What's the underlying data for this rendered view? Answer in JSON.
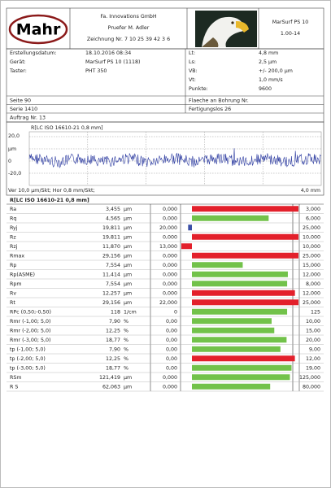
{
  "header": {
    "logo": "Mahr",
    "company": "Fa. Innovations GmbH",
    "examiner": "Pruefer M. Adler",
    "drawing": "Zeichnung Nr. 7 10 25 39 42 3 6",
    "instrument": "MarSurf PS 10",
    "version": "1.00-14"
  },
  "info": {
    "left": [
      [
        "Erstellungsdatum:",
        "18.10.2016   08:34"
      ],
      [
        "Gerät:",
        "MarSurf PS 10 (1118)"
      ],
      [
        "Taster:",
        "PHT 350"
      ]
    ],
    "right": [
      [
        "Lt:",
        "4,8 mm"
      ],
      [
        "Ls:",
        "2,5 µm"
      ],
      [
        "VB:",
        "+/- 200,0 µm"
      ],
      [
        "Vt:",
        "1,0 mm/s"
      ],
      [
        "Punkte:",
        "9600"
      ]
    ]
  },
  "order": {
    "rows": [
      [
        "Seite 90",
        "Flaeche an Bohrung Nr."
      ],
      [
        "Serie 1410",
        "Fertigungslos 26"
      ],
      [
        "Auftrag Nr. 13"
      ]
    ]
  },
  "profile": {
    "title": "R[LC ISO 16610-21 0,8 mm]",
    "y_top": "20,0",
    "y_unit": "µm",
    "y_mid": "0",
    "y_bottom": "-20,0",
    "scale": "Ver 10,0 µm/Skt; Hor 0,8 mm/Skt;",
    "length": "4,0 mm"
  },
  "results": {
    "title": "R[LC ISO 16610-21 0,8 mm]",
    "colors": {
      "over": "#e3202b",
      "ok": "#72c24a",
      "under": "#3a4ea6"
    },
    "rows": [
      {
        "name": "Ra",
        "value": "3,455",
        "unit": "µm",
        "lower": "0,000",
        "upper": "3,000"
      },
      {
        "name": "Rq",
        "value": "4,565",
        "unit": "µm",
        "lower": "0,000",
        "upper": "6,000"
      },
      {
        "name": "Ryj",
        "value": "19,811",
        "unit": "µm",
        "lower": "20,000",
        "upper": "25,000"
      },
      {
        "name": "Rz",
        "value": "19,811",
        "unit": "µm",
        "lower": "0,000",
        "upper": "10,000"
      },
      {
        "name": "Rzj",
        "value": "11,870",
        "unit": "µm",
        "lower": "13,000",
        "upper": "10,000"
      },
      {
        "name": "Rmax",
        "value": "29,156",
        "unit": "µm",
        "lower": "0,000",
        "upper": "25,000"
      },
      {
        "name": "Rp",
        "value": "7,554",
        "unit": "µm",
        "lower": "0,000",
        "upper": "15,000"
      },
      {
        "name": "Rp(ASME)",
        "value": "11,414",
        "unit": "µm",
        "lower": "0,000",
        "upper": "12,000"
      },
      {
        "name": "Rpm",
        "value": "7,554",
        "unit": "µm",
        "lower": "0,000",
        "upper": "8,000"
      },
      {
        "name": "Rv",
        "value": "12,257",
        "unit": "µm",
        "lower": "0,000",
        "upper": "12,000"
      },
      {
        "name": "Rt",
        "value": "29,156",
        "unit": "µm",
        "lower": "22,000",
        "upper": "25,000"
      },
      {
        "name": "RPc (0,50;-0,50)",
        "value": "118",
        "unit": "1/cm",
        "lower": "0",
        "upper": "125"
      },
      {
        "name": "Rmr (-1,00; 5,0)",
        "value": "7,90",
        "unit": "%",
        "lower": "0,00",
        "upper": "10,00"
      },
      {
        "name": "Rmr (-2,00; 5,0)",
        "value": "12,25",
        "unit": "%",
        "lower": "0,00",
        "upper": "15,00"
      },
      {
        "name": "Rmr (-3,00; 5,0)",
        "value": "18,77",
        "unit": "%",
        "lower": "0,00",
        "upper": "20,00"
      },
      {
        "name": "tp (-1,00; 5,0)",
        "value": "7,90",
        "unit": "%",
        "lower": "0,00",
        "upper": "9,00"
      },
      {
        "name": "tp (-2,00; 5,0)",
        "value": "12,25",
        "unit": "%",
        "lower": "0,00",
        "upper": "12,00"
      },
      {
        "name": "tp (-3,00; 5,0)",
        "value": "18,77",
        "unit": "%",
        "lower": "0,00",
        "upper": "19,00"
      },
      {
        "name": "RSm",
        "value": "121,419",
        "unit": "µm",
        "lower": "0,000",
        "upper": "125,000"
      },
      {
        "name": "R S",
        "value": "62,063",
        "unit": "µm",
        "lower": "0,000",
        "upper": "80,000"
      }
    ]
  }
}
